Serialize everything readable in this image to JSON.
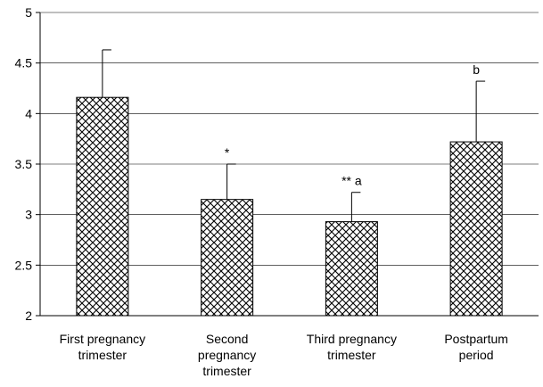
{
  "chart_data": {
    "type": "bar",
    "title": "",
    "xlabel": "",
    "ylabel": "",
    "ylim": [
      2,
      5
    ],
    "yticks": [
      "2",
      "2.5",
      "3",
      "3.5",
      "4",
      "4.5",
      "5"
    ],
    "grid": "horizontal",
    "legend": "none",
    "bar_fill": "crosshatch",
    "categories": [
      [
        "First pregnancy",
        "trimester"
      ],
      [
        "Second",
        "pregnancy",
        "trimester"
      ],
      [
        "Third pregnancy",
        "trimester"
      ],
      [
        "Postpartum",
        "period"
      ]
    ],
    "values": [
      4.16,
      3.15,
      2.93,
      3.72
    ],
    "error_upper": [
      4.63,
      3.5,
      3.22,
      4.32
    ],
    "annotations": [
      "",
      "*",
      "** a",
      "b"
    ]
  }
}
